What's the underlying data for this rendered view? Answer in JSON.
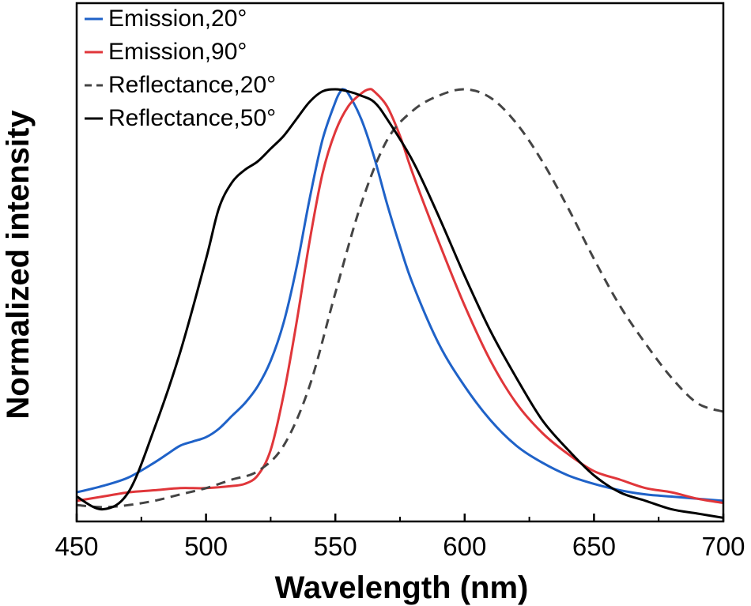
{
  "chart_data": {
    "type": "line",
    "title": "",
    "xlabel": "Wavelength (nm)",
    "ylabel": "Normalized intensity",
    "xlim": [
      450,
      700
    ],
    "ylim": [
      0,
      1.0
    ],
    "xticks": [
      450,
      500,
      550,
      600,
      650,
      700
    ],
    "x_tick_labels": [
      "450",
      "500",
      "550",
      "600",
      "650",
      "700"
    ],
    "y_ticks_shown": false,
    "grid": false,
    "legend_position": "top-left",
    "series": [
      {
        "name": "Emission,20°",
        "color": "#1f62c8",
        "dash": "solid",
        "x": [
          450,
          460,
          470,
          480,
          485,
          490,
          495,
          500,
          505,
          510,
          515,
          520,
          525,
          530,
          535,
          540,
          545,
          550,
          552,
          553,
          555,
          560,
          565,
          570,
          575,
          580,
          590,
          600,
          610,
          620,
          630,
          640,
          650,
          660,
          670,
          680,
          690,
          700
        ],
        "y": [
          0.05,
          0.065,
          0.085,
          0.12,
          0.14,
          0.16,
          0.17,
          0.18,
          0.2,
          0.23,
          0.26,
          0.3,
          0.36,
          0.45,
          0.58,
          0.74,
          0.88,
          0.97,
          0.995,
          1.0,
          0.99,
          0.93,
          0.84,
          0.73,
          0.63,
          0.54,
          0.4,
          0.3,
          0.22,
          0.16,
          0.12,
          0.09,
          0.07,
          0.055,
          0.045,
          0.04,
          0.035,
          0.03
        ]
      },
      {
        "name": "Emission,90°",
        "color": "#e0363a",
        "dash": "solid",
        "x": [
          450,
          460,
          470,
          480,
          490,
          495,
          500,
          510,
          515,
          520,
          525,
          530,
          535,
          540,
          545,
          550,
          555,
          560,
          563,
          565,
          570,
          575,
          580,
          590,
          600,
          610,
          620,
          630,
          640,
          650,
          660,
          670,
          680,
          690,
          700
        ],
        "y": [
          0.03,
          0.04,
          0.05,
          0.055,
          0.06,
          0.06,
          0.06,
          0.065,
          0.07,
          0.09,
          0.15,
          0.28,
          0.45,
          0.64,
          0.8,
          0.9,
          0.96,
          0.99,
          1.0,
          0.995,
          0.96,
          0.89,
          0.8,
          0.64,
          0.49,
          0.36,
          0.26,
          0.19,
          0.14,
          0.1,
          0.08,
          0.06,
          0.05,
          0.035,
          0.025
        ]
      },
      {
        "name": "Reflectance,20°",
        "color": "#444444",
        "dash": "dashed",
        "x": [
          450,
          460,
          470,
          480,
          490,
          500,
          510,
          520,
          530,
          540,
          550,
          560,
          570,
          580,
          590,
          600,
          610,
          620,
          630,
          640,
          650,
          660,
          670,
          680,
          690,
          700
        ],
        "y": [
          0.02,
          0.015,
          0.02,
          0.03,
          0.045,
          0.06,
          0.08,
          0.1,
          0.16,
          0.3,
          0.52,
          0.73,
          0.88,
          0.95,
          0.985,
          1.0,
          0.98,
          0.92,
          0.83,
          0.72,
          0.6,
          0.49,
          0.4,
          0.32,
          0.26,
          0.24
        ]
      },
      {
        "name": "Reflectance,50°",
        "color": "#000000",
        "dash": "solid",
        "x": [
          450,
          460,
          470,
          480,
          490,
          500,
          505,
          510,
          515,
          520,
          525,
          530,
          535,
          540,
          545,
          550,
          555,
          560,
          565,
          570,
          580,
          590,
          600,
          610,
          620,
          630,
          640,
          650,
          660,
          670,
          680,
          690,
          700
        ],
        "y": [
          0.04,
          0.01,
          0.05,
          0.2,
          0.38,
          0.6,
          0.72,
          0.78,
          0.81,
          0.83,
          0.86,
          0.89,
          0.93,
          0.97,
          0.995,
          1.0,
          0.995,
          0.985,
          0.97,
          0.93,
          0.83,
          0.7,
          0.56,
          0.43,
          0.32,
          0.22,
          0.15,
          0.09,
          0.05,
          0.03,
          0.01,
          0.0,
          -0.01
        ]
      }
    ]
  }
}
